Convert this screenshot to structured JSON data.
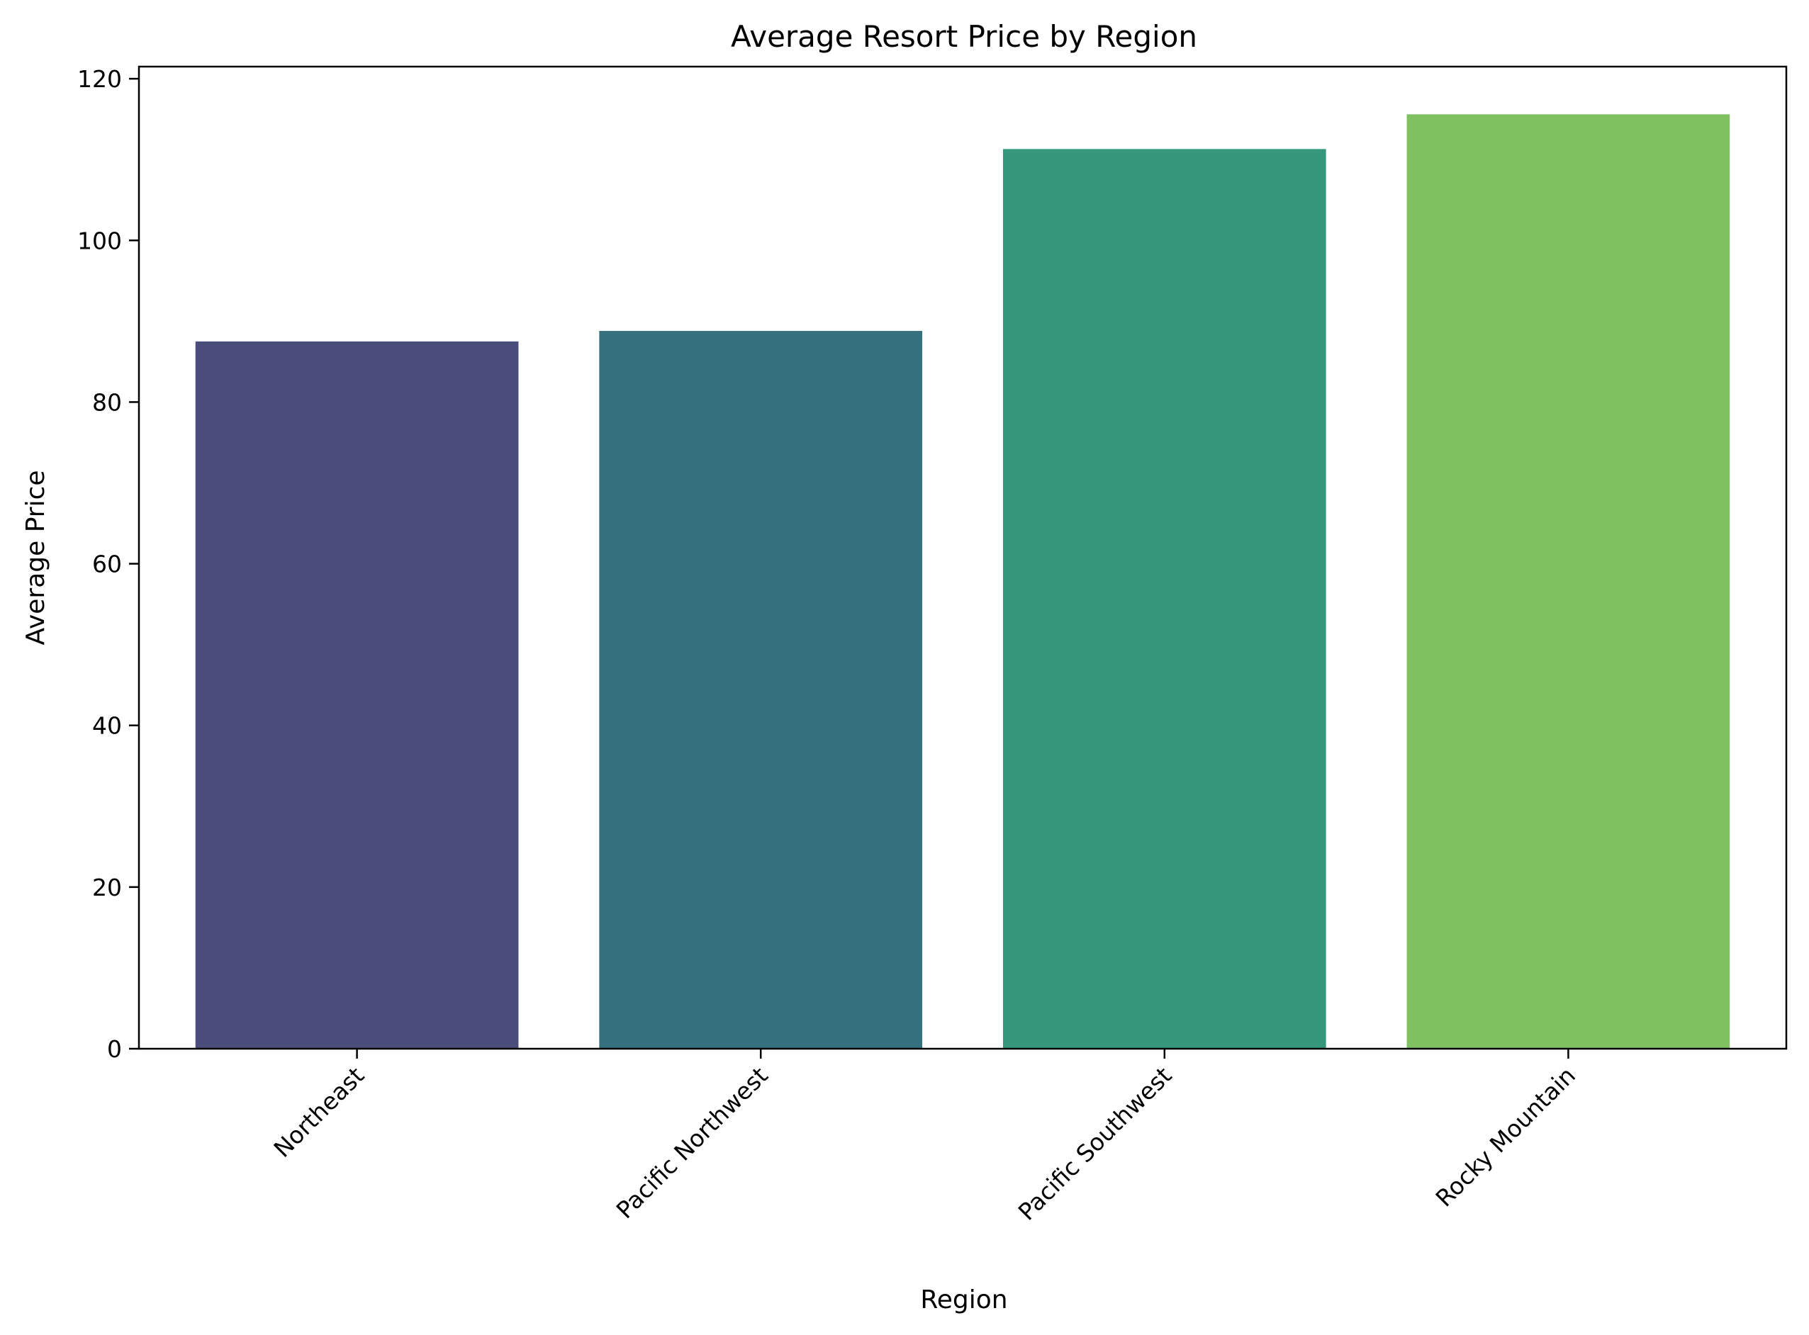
{
  "chart_data": {
    "type": "bar",
    "title": "Average Resort Price by Region",
    "xlabel": "Region",
    "ylabel": "Average Price",
    "categories": [
      "Northeast",
      "Pacific Northwest",
      "Pacific Southwest",
      "Rocky Mountain"
    ],
    "values": [
      87.5,
      88.8,
      111.3,
      115.6
    ],
    "colors": [
      "#4a4d7c",
      "#367180",
      "#35977c",
      "#80c262"
    ],
    "ylim": [
      0,
      121.5
    ],
    "yticks": [
      0,
      20,
      40,
      60,
      80,
      100,
      120
    ],
    "grid": false,
    "legend": "none"
  }
}
